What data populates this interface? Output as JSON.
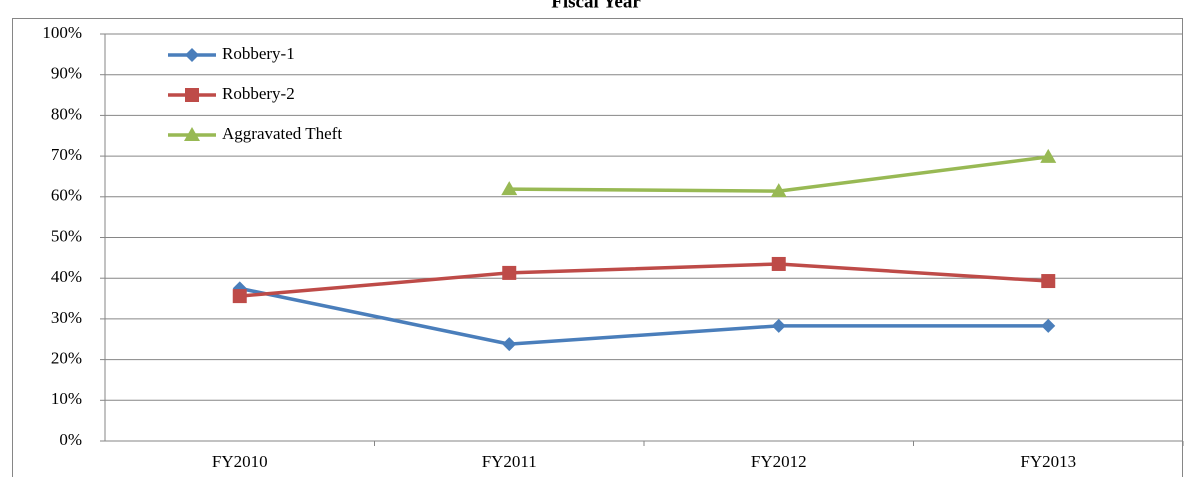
{
  "chart_data": {
    "type": "line",
    "title": "Fiscal Year",
    "categories": [
      "FY2010",
      "FY2011",
      "FY2012",
      "FY2013"
    ],
    "series": [
      {
        "name": "Robbery-1",
        "color": "#4a7ebb",
        "marker": "diamond",
        "values": [
          37.5,
          23.8,
          28.3,
          28.3
        ]
      },
      {
        "name": "Robbery-2",
        "color": "#be4b48",
        "marker": "square",
        "values": [
          35.6,
          41.3,
          43.5,
          39.3
        ]
      },
      {
        "name": "Aggravated Theft",
        "color": "#98b954",
        "marker": "triangle",
        "values": [
          null,
          61.9,
          61.4,
          69.8
        ]
      }
    ],
    "ylim": [
      0,
      100
    ],
    "yticks": [
      {
        "value": 0,
        "label": "0%"
      },
      {
        "value": 10,
        "label": "10%"
      },
      {
        "value": 20,
        "label": "20%"
      },
      {
        "value": 30,
        "label": "30%"
      },
      {
        "value": 40,
        "label": "40%"
      },
      {
        "value": 50,
        "label": "50%"
      },
      {
        "value": 60,
        "label": "60%"
      },
      {
        "value": 70,
        "label": "70%"
      },
      {
        "value": 80,
        "label": "80%"
      },
      {
        "value": 90,
        "label": "90%"
      },
      {
        "value": 100,
        "label": "100%"
      }
    ],
    "grid": true,
    "legend": "upper left"
  }
}
